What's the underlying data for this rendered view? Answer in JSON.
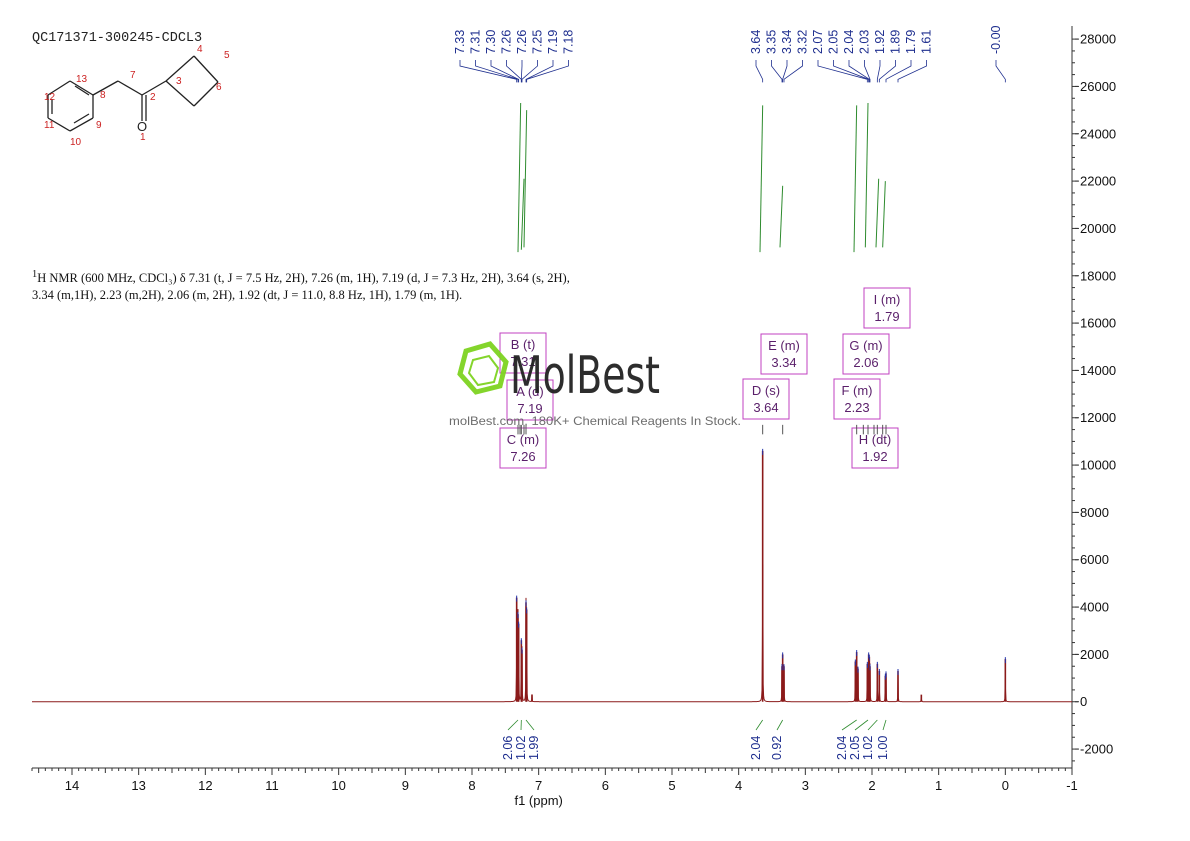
{
  "sample": {
    "id": "QC171371-300245-CDCL3"
  },
  "structure": {
    "atom_labels": [
      "1",
      "2",
      "3",
      "4",
      "5",
      "6",
      "7",
      "8",
      "9",
      "10",
      "11",
      "12",
      "13"
    ],
    "oxygen": "O"
  },
  "description": {
    "sup": "1",
    "text": "H NMR (600 MHz, CDCl₃) δ 7.31 (t, J = 7.5 Hz, 2H), 7.26 (m, 1H), 7.19 (d, J = 7.3 Hz, 2H), 3.64 (s, 2H), 3.34 (m,1H), 2.23 (m,2H), 2.06 (m, 2H), 1.92 (dt, J = 11.0, 8.8 Hz, 1H), 1.79 (m, 1H)."
  },
  "watermark": {
    "brand": "MolBest",
    "tagline": "molBest.com, 180K+ Chemical Reagents In Stock."
  },
  "colors": {
    "spectrum": "#8b1a1a",
    "peak_labels": "#1f2f8f",
    "integral": "#2e8b2e",
    "multiplet_box": "#c040c0",
    "multiplet_text": "#5a1f6a",
    "structure_labels": "#cc2222",
    "watermark_green": "#7ed321"
  },
  "chart_data": {
    "type": "line",
    "title": "",
    "xlabel": "f1 (ppm)",
    "ylabel": "",
    "xlim": [
      14.6,
      -1.0
    ],
    "ylim": [
      -2800,
      28300
    ],
    "x_ticks": [
      14,
      13,
      12,
      11,
      10,
      9,
      8,
      7,
      6,
      5,
      4,
      3,
      2,
      1,
      0,
      -1
    ],
    "y_ticks": [
      -2000,
      0,
      2000,
      4000,
      6000,
      8000,
      10000,
      12000,
      14000,
      16000,
      18000,
      20000,
      22000,
      24000,
      26000,
      28000
    ],
    "peaks": [
      {
        "ppm": 7.33,
        "height": 4400
      },
      {
        "ppm": 7.31,
        "height": 3700
      },
      {
        "ppm": 7.3,
        "height": 3300
      },
      {
        "ppm": 7.26,
        "height": 2600
      },
      {
        "ppm": 7.25,
        "height": 2200
      },
      {
        "ppm": 7.19,
        "height": 4200
      },
      {
        "ppm": 7.18,
        "height": 3900
      },
      {
        "ppm": 7.1,
        "height": 300
      },
      {
        "ppm": 3.64,
        "height": 10600
      },
      {
        "ppm": 3.35,
        "height": 1500
      },
      {
        "ppm": 3.34,
        "height": 2000
      },
      {
        "ppm": 3.32,
        "height": 1500
      },
      {
        "ppm": 2.25,
        "height": 1700
      },
      {
        "ppm": 2.23,
        "height": 2100
      },
      {
        "ppm": 2.21,
        "height": 1400
      },
      {
        "ppm": 2.07,
        "height": 1600
      },
      {
        "ppm": 2.05,
        "height": 2000
      },
      {
        "ppm": 2.04,
        "height": 1900
      },
      {
        "ppm": 2.03,
        "height": 1500
      },
      {
        "ppm": 1.92,
        "height": 1600
      },
      {
        "ppm": 1.89,
        "height": 1300
      },
      {
        "ppm": 1.8,
        "height": 1100
      },
      {
        "ppm": 1.79,
        "height": 1200
      },
      {
        "ppm": 1.61,
        "height": 1300
      },
      {
        "ppm": 1.26,
        "height": 300
      },
      {
        "ppm": 0.0,
        "height": 1800
      }
    ],
    "peak_labels": [
      {
        "group": "aromatic",
        "values": [
          "7.33",
          "7.31",
          "7.30",
          "7.26",
          "7.26",
          "7.25",
          "7.19",
          "7.18"
        ]
      },
      {
        "group": "aliphatic",
        "values": [
          "3.64",
          "3.35",
          "3.34",
          "3.32",
          "2.07",
          "2.05",
          "2.04",
          "2.03",
          "1.92",
          "1.89",
          "1.79",
          "1.61"
        ]
      },
      {
        "group": "reference",
        "values": [
          "-0.00"
        ]
      }
    ],
    "multiplets": [
      {
        "letter": "B",
        "mult": "(t)",
        "value": "7.31"
      },
      {
        "letter": "A",
        "mult": "(d)",
        "value": "7.19"
      },
      {
        "letter": "C",
        "mult": "(m)",
        "value": "7.26"
      },
      {
        "letter": "D",
        "mult": "(s)",
        "value": "3.64"
      },
      {
        "letter": "E",
        "mult": "(m)",
        "value": "3.34"
      },
      {
        "letter": "F",
        "mult": "(m)",
        "value": "2.23"
      },
      {
        "letter": "G",
        "mult": "(m)",
        "value": "2.06"
      },
      {
        "letter": "H",
        "mult": "(dt)",
        "value": "1.92"
      },
      {
        "letter": "I",
        "mult": "(m)",
        "value": "1.79"
      }
    ],
    "integrals": [
      {
        "ppm": 7.31,
        "value": "2.06"
      },
      {
        "ppm": 7.26,
        "value": "1.02"
      },
      {
        "ppm": 7.19,
        "value": "1.99"
      },
      {
        "ppm": 3.64,
        "value": "2.04"
      },
      {
        "ppm": 3.34,
        "value": "0.92"
      },
      {
        "ppm": 2.23,
        "value": "2.04"
      },
      {
        "ppm": 2.06,
        "value": "2.05"
      },
      {
        "ppm": 1.92,
        "value": "1.02"
      },
      {
        "ppm": 1.79,
        "value": "1.00"
      }
    ]
  }
}
